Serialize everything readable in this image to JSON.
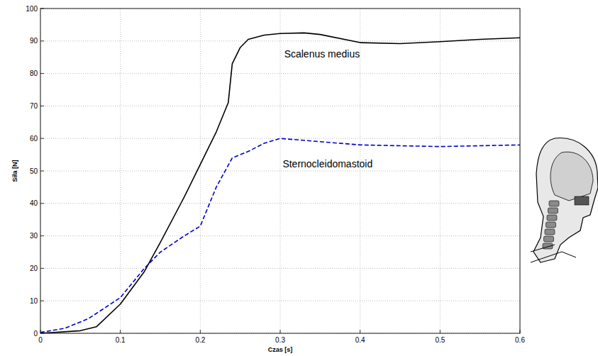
{
  "chart_data": {
    "type": "line",
    "x_label": "Czas [s]",
    "y_label": "Siła [N]",
    "xlim": [
      0,
      0.6
    ],
    "ylim": [
      0,
      100
    ],
    "xticks": [
      0,
      0.1,
      0.2,
      0.3,
      0.4,
      0.5,
      0.6
    ],
    "yticks": [
      0,
      10,
      20,
      30,
      40,
      50,
      60,
      70,
      80,
      90,
      100
    ],
    "grid": true,
    "series": [
      {
        "name": "Scalenus medius",
        "color": "#000000",
        "line_style": "solid",
        "x": [
          0,
          0.05,
          0.07,
          0.1,
          0.13,
          0.15,
          0.18,
          0.2,
          0.22,
          0.235,
          0.24,
          0.25,
          0.26,
          0.28,
          0.3,
          0.33,
          0.35,
          0.4,
          0.45,
          0.5,
          0.55,
          0.6
        ],
        "values": [
          0,
          0.8,
          2,
          9,
          19,
          28,
          42,
          52,
          62,
          71,
          83,
          88,
          90.5,
          91.8,
          92.3,
          92.5,
          92,
          89.5,
          89.2,
          89.8,
          90.5,
          91
        ]
      },
      {
        "name": "Sternocleidomastoid",
        "color": "#0000cc",
        "line_style": "dashed",
        "x": [
          0,
          0.03,
          0.06,
          0.1,
          0.13,
          0.15,
          0.18,
          0.2,
          0.22,
          0.24,
          0.26,
          0.28,
          0.3,
          0.35,
          0.4,
          0.5,
          0.6
        ],
        "values": [
          0.3,
          1.5,
          4.5,
          11,
          20,
          25,
          30,
          33,
          45,
          54,
          56,
          58.5,
          60,
          59,
          58,
          57.5,
          58
        ]
      }
    ],
    "annotations": [
      {
        "text": "Scalenus medius",
        "x": 0.305,
        "y": 85
      },
      {
        "text": "Sternocleidomastoid",
        "x": 0.303,
        "y": 51
      }
    ]
  }
}
